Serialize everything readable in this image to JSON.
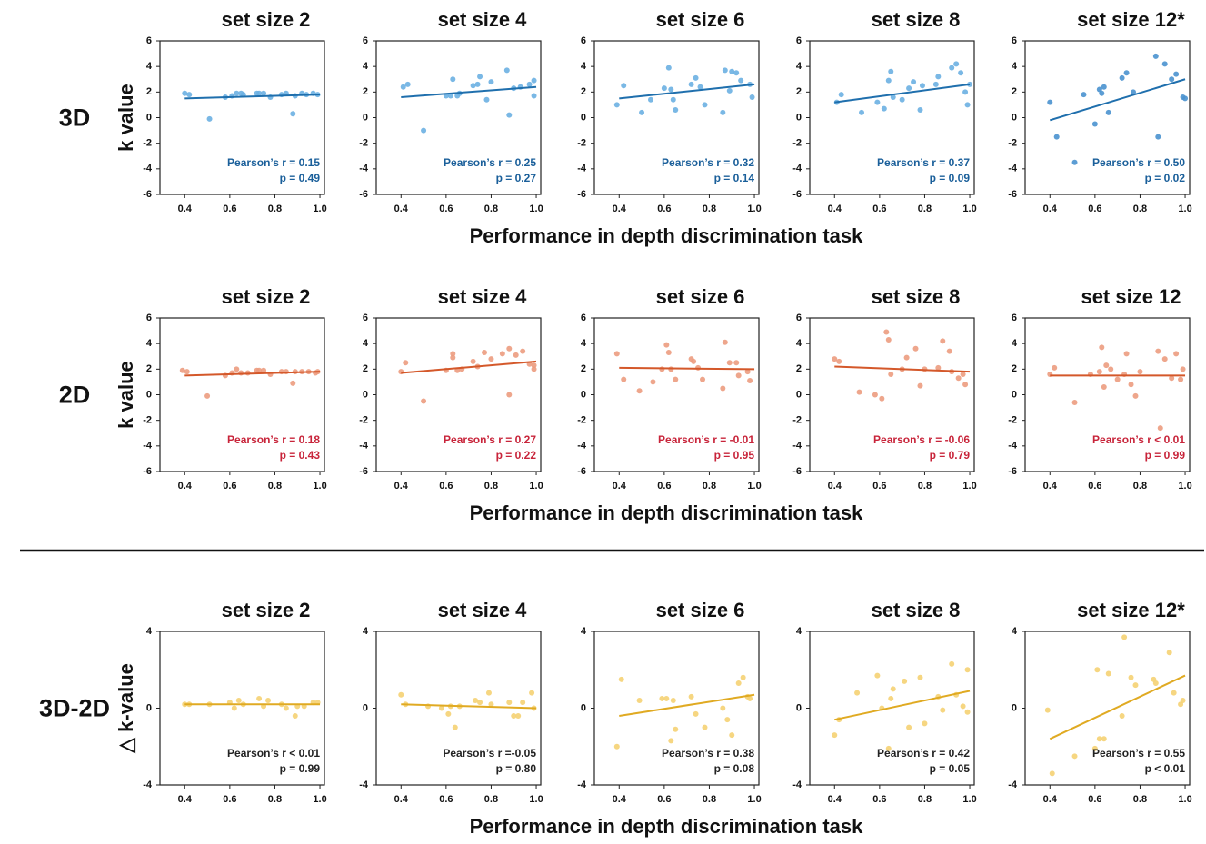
{
  "rows": [
    {
      "label": "3D",
      "ylabel": "k value",
      "xlabel": "Performance in depth discrimination task"
    },
    {
      "label": "2D",
      "ylabel": "k value",
      "xlabel": "Performance in depth discrimination task"
    },
    {
      "label": "3D-2D",
      "ylabel": "△ k-value",
      "xlabel": "Performance in depth discrimination task"
    }
  ],
  "chart_data": [
    {
      "type": "scatter",
      "title": "set size 2",
      "color": "#6cb0e2",
      "line_color": "#1f6fad",
      "text_color": "#1a5f9a",
      "x": [
        0.4,
        0.42,
        0.51,
        0.58,
        0.61,
        0.63,
        0.65,
        0.66,
        0.72,
        0.73,
        0.75,
        0.78,
        0.83,
        0.85,
        0.88,
        0.89,
        0.92,
        0.94,
        0.97,
        0.99
      ],
      "values": [
        1.9,
        1.8,
        -0.1,
        1.6,
        1.7,
        1.9,
        1.9,
        1.8,
        1.9,
        1.9,
        1.9,
        1.6,
        1.8,
        1.9,
        0.3,
        1.7,
        1.9,
        1.8,
        1.9,
        1.8
      ],
      "fit": {
        "x": [
          0.4,
          1.0
        ],
        "y": [
          1.5,
          1.8
        ]
      },
      "stats": [
        "Pearson’s r = 0.15",
        "p = 0.49"
      ],
      "xlim": [
        0.29,
        1.02
      ],
      "ylim": [
        -6,
        6
      ],
      "xticks": [
        0.4,
        0.6,
        0.8,
        {
          "value": 1,
          "label": "1.0"
        }
      ],
      "yticks": [
        -6,
        -4,
        -2,
        0,
        2,
        4,
        6
      ]
    },
    {
      "type": "scatter",
      "title": "set size 4",
      "color": "#6cb0e2",
      "line_color": "#1f6fad",
      "text_color": "#1a5f9a",
      "x": [
        0.41,
        0.43,
        0.5,
        0.6,
        0.62,
        0.63,
        0.65,
        0.66,
        0.72,
        0.74,
        0.75,
        0.78,
        0.8,
        0.87,
        0.88,
        0.9,
        0.93,
        0.97,
        0.99,
        0.99
      ],
      "values": [
        2.4,
        2.6,
        -1.0,
        1.7,
        1.7,
        3.0,
        1.7,
        1.9,
        2.5,
        2.6,
        3.2,
        1.4,
        2.8,
        3.7,
        0.2,
        2.3,
        2.4,
        2.6,
        1.7,
        2.9
      ],
      "fit": {
        "x": [
          0.4,
          1.0
        ],
        "y": [
          1.6,
          2.4
        ]
      },
      "stats": [
        "Pearson’s r = 0.25",
        "p = 0.27"
      ],
      "xlim": [
        0.29,
        1.02
      ],
      "ylim": [
        -6,
        6
      ],
      "xticks": [
        0.4,
        0.6,
        0.8,
        {
          "value": 1,
          "label": "1.0"
        }
      ],
      "yticks": [
        -6,
        -4,
        -2,
        0,
        2,
        4,
        6
      ]
    },
    {
      "type": "scatter",
      "title": "set size 6",
      "color": "#6cb0e2",
      "line_color": "#1f6fad",
      "text_color": "#1a5f9a",
      "x": [
        0.39,
        0.42,
        0.5,
        0.54,
        0.6,
        0.62,
        0.63,
        0.64,
        0.65,
        0.72,
        0.74,
        0.76,
        0.78,
        0.86,
        0.87,
        0.89,
        0.9,
        0.92,
        0.94,
        0.98,
        0.99
      ],
      "values": [
        1.0,
        2.5,
        0.4,
        1.4,
        2.3,
        3.9,
        2.2,
        1.4,
        0.6,
        2.6,
        3.1,
        2.4,
        1.0,
        0.4,
        3.7,
        2.1,
        3.6,
        3.5,
        2.9,
        2.6,
        1.6
      ],
      "fit": {
        "x": [
          0.4,
          1.0
        ],
        "y": [
          1.5,
          2.6
        ]
      },
      "stats": [
        "Pearson’s r = 0.32",
        "p = 0.14"
      ],
      "xlim": [
        0.29,
        1.02
      ],
      "ylim": [
        -6,
        6
      ],
      "xticks": [
        0.4,
        0.6,
        0.8,
        {
          "value": 1,
          "label": "1.0"
        }
      ],
      "yticks": [
        -6,
        -4,
        -2,
        0,
        2,
        4,
        6
      ]
    },
    {
      "type": "scatter",
      "title": "set size 8",
      "color": "#6cb0e2",
      "line_color": "#1f6fad",
      "text_color": "#1a5f9a",
      "x": [
        0.41,
        0.43,
        0.52,
        0.59,
        0.62,
        0.64,
        0.65,
        0.66,
        0.7,
        0.73,
        0.75,
        0.78,
        0.79,
        0.85,
        0.86,
        0.92,
        0.94,
        0.96,
        0.98,
        0.99,
        1.0
      ],
      "values": [
        1.2,
        1.8,
        0.4,
        1.2,
        0.7,
        2.9,
        3.6,
        1.6,
        1.4,
        2.3,
        2.8,
        0.6,
        2.5,
        2.6,
        3.2,
        3.9,
        4.2,
        3.5,
        2.0,
        1.0,
        2.6
      ],
      "fit": {
        "x": [
          0.4,
          1.0
        ],
        "y": [
          1.2,
          2.6
        ]
      },
      "stats": [
        "Pearson’s r = 0.37",
        "p = 0.09"
      ],
      "xlim": [
        0.29,
        1.02
      ],
      "ylim": [
        -6,
        6
      ],
      "xticks": [
        0.4,
        0.6,
        0.8,
        {
          "value": 1,
          "label": "1.0"
        }
      ],
      "yticks": [
        -6,
        -4,
        -2,
        0,
        2,
        4,
        6
      ]
    },
    {
      "type": "scatter",
      "title": "set size 12*",
      "color": "#4a92cf",
      "line_color": "#1f6fad",
      "text_color": "#1a5f9a",
      "x": [
        0.4,
        0.43,
        0.51,
        0.55,
        0.6,
        0.62,
        0.63,
        0.64,
        0.66,
        0.72,
        0.74,
        0.77,
        0.87,
        0.88,
        0.91,
        0.94,
        0.96,
        0.99,
        1.0
      ],
      "values": [
        1.2,
        -1.5,
        -3.5,
        1.8,
        -0.5,
        2.2,
        1.9,
        2.4,
        0.4,
        3.1,
        3.5,
        2.0,
        4.8,
        -1.5,
        4.2,
        3.0,
        3.4,
        1.6,
        1.5
      ],
      "fit": {
        "x": [
          0.4,
          1.0
        ],
        "y": [
          -0.2,
          3.0
        ]
      },
      "stats": [
        "Pearson’s r = 0.50",
        "p = 0.02"
      ],
      "xlim": [
        0.29,
        1.02
      ],
      "ylim": [
        -6,
        6
      ],
      "xticks": [
        0.4,
        0.6,
        0.8,
        {
          "value": 1,
          "label": "1.0"
        }
      ],
      "yticks": [
        -6,
        -4,
        -2,
        0,
        2,
        4,
        6
      ]
    },
    {
      "type": "scatter",
      "title": "set size 2",
      "color": "#ec9c80",
      "line_color": "#d4582a",
      "text_color": "#c8243a",
      "x": [
        0.39,
        0.41,
        0.5,
        0.58,
        0.61,
        0.63,
        0.65,
        0.68,
        0.72,
        0.73,
        0.75,
        0.78,
        0.83,
        0.85,
        0.88,
        0.89,
        0.92,
        0.95,
        0.98,
        0.99
      ],
      "values": [
        1.9,
        1.8,
        -0.1,
        1.5,
        1.7,
        2.0,
        1.7,
        1.7,
        1.9,
        1.9,
        1.9,
        1.6,
        1.8,
        1.8,
        0.9,
        1.8,
        1.8,
        1.8,
        1.7,
        1.8
      ],
      "fit": {
        "x": [
          0.4,
          1.0
        ],
        "y": [
          1.5,
          1.8
        ]
      },
      "stats": [
        "Pearson’s r = 0.18",
        "p = 0.43"
      ],
      "xlim": [
        0.29,
        1.02
      ],
      "ylim": [
        -6,
        6
      ],
      "xticks": [
        0.4,
        0.6,
        0.8,
        {
          "value": 1,
          "label": "1.0"
        }
      ],
      "yticks": [
        -6,
        -4,
        -2,
        0,
        2,
        4,
        6
      ]
    },
    {
      "type": "scatter",
      "title": "set size 4",
      "color": "#ec9c80",
      "line_color": "#d4582a",
      "text_color": "#c8243a",
      "x": [
        0.4,
        0.42,
        0.5,
        0.6,
        0.63,
        0.63,
        0.65,
        0.67,
        0.72,
        0.74,
        0.77,
        0.8,
        0.85,
        0.88,
        0.88,
        0.91,
        0.94,
        0.97,
        0.99,
        0.99
      ],
      "values": [
        1.8,
        2.5,
        -0.5,
        1.9,
        3.2,
        2.9,
        1.9,
        2.0,
        2.6,
        2.2,
        3.3,
        2.8,
        3.2,
        3.6,
        0.0,
        3.1,
        3.4,
        2.4,
        2.0,
        2.3
      ],
      "fit": {
        "x": [
          0.4,
          1.0
        ],
        "y": [
          1.7,
          2.6
        ]
      },
      "stats": [
        "Pearson’s r = 0.27",
        "p = 0.22"
      ],
      "xlim": [
        0.29,
        1.02
      ],
      "ylim": [
        -6,
        6
      ],
      "xticks": [
        0.4,
        0.6,
        0.8,
        {
          "value": 1,
          "label": "1.0"
        }
      ],
      "yticks": [
        -6,
        -4,
        -2,
        0,
        2,
        4,
        6
      ]
    },
    {
      "type": "scatter",
      "title": "set size 6",
      "color": "#ec9c80",
      "line_color": "#d4582a",
      "text_color": "#c8243a",
      "x": [
        0.39,
        0.42,
        0.49,
        0.55,
        0.59,
        0.61,
        0.62,
        0.63,
        0.65,
        0.72,
        0.73,
        0.75,
        0.77,
        0.86,
        0.87,
        0.89,
        0.92,
        0.93,
        0.97,
        0.98
      ],
      "values": [
        3.2,
        1.2,
        0.3,
        1.0,
        2.0,
        3.9,
        3.3,
        2.0,
        1.2,
        2.8,
        2.6,
        2.1,
        1.2,
        0.5,
        4.1,
        2.5,
        2.5,
        1.5,
        1.8,
        1.1
      ],
      "fit": {
        "x": [
          0.4,
          1.0
        ],
        "y": [
          2.1,
          2.0
        ]
      },
      "stats": [
        "Pearson’s r = -0.01",
        "p = 0.95"
      ],
      "xlim": [
        0.29,
        1.02
      ],
      "ylim": [
        -6,
        6
      ],
      "xticks": [
        0.4,
        0.6,
        0.8,
        {
          "value": 1,
          "label": "1.0"
        }
      ],
      "yticks": [
        -6,
        -4,
        -2,
        0,
        2,
        4,
        6
      ]
    },
    {
      "type": "scatter",
      "title": "set size 8",
      "color": "#ec9c80",
      "line_color": "#d4582a",
      "text_color": "#c8243a",
      "x": [
        0.4,
        0.42,
        0.51,
        0.58,
        0.61,
        0.63,
        0.64,
        0.65,
        0.7,
        0.72,
        0.76,
        0.78,
        0.8,
        0.86,
        0.88,
        0.91,
        0.92,
        0.95,
        0.97,
        0.98
      ],
      "values": [
        2.8,
        2.6,
        0.2,
        0.0,
        -0.3,
        4.9,
        4.3,
        1.6,
        2.0,
        2.9,
        3.6,
        0.7,
        2.0,
        2.1,
        4.2,
        3.4,
        1.8,
        1.3,
        1.6,
        0.8
      ],
      "fit": {
        "x": [
          0.4,
          1.0
        ],
        "y": [
          2.2,
          1.8
        ]
      },
      "stats": [
        "Pearson’s r = -0.06",
        "p = 0.79"
      ],
      "xlim": [
        0.29,
        1.02
      ],
      "ylim": [
        -6,
        6
      ],
      "xticks": [
        0.4,
        0.6,
        0.8,
        {
          "value": 1,
          "label": "1.0"
        }
      ],
      "yticks": [
        -6,
        -4,
        -2,
        0,
        2,
        4,
        6
      ]
    },
    {
      "type": "scatter",
      "title": "set size 12",
      "color": "#ec9c80",
      "line_color": "#d4582a",
      "text_color": "#c8243a",
      "x": [
        0.4,
        0.42,
        0.51,
        0.58,
        0.62,
        0.63,
        0.64,
        0.65,
        0.67,
        0.7,
        0.73,
        0.74,
        0.76,
        0.78,
        0.8,
        0.88,
        0.89,
        0.91,
        0.94,
        0.96,
        0.98,
        0.99
      ],
      "values": [
        1.6,
        2.1,
        -0.6,
        1.6,
        1.8,
        3.7,
        0.6,
        2.3,
        2.0,
        1.2,
        1.6,
        3.2,
        0.8,
        -0.1,
        1.8,
        3.4,
        -2.6,
        2.8,
        1.3,
        3.2,
        1.2,
        2.0
      ],
      "fit": {
        "x": [
          0.4,
          1.0
        ],
        "y": [
          1.5,
          1.5
        ]
      },
      "stats": [
        "Pearson’s r < 0.01",
        "p = 0.99"
      ],
      "xlim": [
        0.29,
        1.02
      ],
      "ylim": [
        -6,
        6
      ],
      "xticks": [
        0.4,
        0.6,
        0.8,
        {
          "value": 1,
          "label": "1.0"
        }
      ],
      "yticks": [
        -6,
        -4,
        -2,
        0,
        2,
        4,
        6
      ]
    },
    {
      "type": "scatter",
      "title": "set size 2",
      "color": "#f5d173",
      "line_color": "#e0aa22",
      "text_color": "#222222",
      "x": [
        0.4,
        0.42,
        0.51,
        0.6,
        0.62,
        0.64,
        0.66,
        0.73,
        0.75,
        0.77,
        0.83,
        0.85,
        0.89,
        0.9,
        0.93,
        0.97,
        0.99
      ],
      "values": [
        0.2,
        0.2,
        0.2,
        0.3,
        0.0,
        0.4,
        0.2,
        0.5,
        0.1,
        0.4,
        0.2,
        0.0,
        -0.4,
        0.1,
        0.1,
        0.3,
        0.3
      ],
      "fit": {
        "x": [
          0.4,
          1.0
        ],
        "y": [
          0.2,
          0.2
        ]
      },
      "stats": [
        "Pearson’s r < 0.01",
        "p = 0.99"
      ],
      "xlim": [
        0.29,
        1.02
      ],
      "ylim": [
        -4,
        4
      ],
      "xticks": [
        0.4,
        0.6,
        0.8,
        {
          "value": 1,
          "label": "1.0"
        }
      ],
      "yticks": [
        -4,
        0,
        4
      ]
    },
    {
      "type": "scatter",
      "title": "set size 4",
      "color": "#f5d173",
      "line_color": "#e0aa22",
      "text_color": "#222222",
      "x": [
        0.4,
        0.42,
        0.52,
        0.58,
        0.61,
        0.62,
        0.64,
        0.66,
        0.73,
        0.75,
        0.79,
        0.8,
        0.88,
        0.9,
        0.92,
        0.94,
        0.98,
        0.99
      ],
      "values": [
        0.7,
        0.2,
        0.1,
        0.0,
        -0.3,
        0.1,
        -1.0,
        0.1,
        0.4,
        0.3,
        0.8,
        0.2,
        0.3,
        -0.4,
        -0.4,
        0.3,
        0.8,
        0.0
      ],
      "fit": {
        "x": [
          0.4,
          1.0
        ],
        "y": [
          0.2,
          0.0
        ]
      },
      "stats": [
        "Pearson’s r =-0.05",
        "p = 0.80"
      ],
      "xlim": [
        0.29,
        1.02
      ],
      "ylim": [
        -4,
        4
      ],
      "xticks": [
        0.4,
        0.6,
        0.8,
        {
          "value": 1,
          "label": "1.0"
        }
      ],
      "yticks": [
        -4,
        0,
        4
      ]
    },
    {
      "type": "scatter",
      "title": "set size 6",
      "color": "#f5d173",
      "line_color": "#e0aa22",
      "text_color": "#222222",
      "x": [
        0.39,
        0.41,
        0.49,
        0.59,
        0.61,
        0.63,
        0.64,
        0.65,
        0.72,
        0.74,
        0.78,
        0.86,
        0.88,
        0.9,
        0.93,
        0.95,
        0.97,
        0.98
      ],
      "values": [
        -2.0,
        1.5,
        0.4,
        0.5,
        0.5,
        -1.7,
        0.4,
        -1.1,
        0.6,
        -0.3,
        -1.0,
        0.0,
        -0.6,
        -1.4,
        1.3,
        1.6,
        0.6,
        0.5
      ],
      "fit": {
        "x": [
          0.4,
          1.0
        ],
        "y": [
          -0.4,
          0.7
        ]
      },
      "stats": [
        "Pearson’s r = 0.38",
        "p = 0.08"
      ],
      "xlim": [
        0.29,
        1.02
      ],
      "ylim": [
        -4,
        4
      ],
      "xticks": [
        0.4,
        0.6,
        0.8,
        {
          "value": 1,
          "label": "1.0"
        }
      ],
      "yticks": [
        -4,
        0,
        4
      ]
    },
    {
      "type": "scatter",
      "title": "set size 8",
      "color": "#f5d173",
      "line_color": "#e0aa22",
      "text_color": "#222222",
      "x": [
        0.4,
        0.42,
        0.5,
        0.59,
        0.61,
        0.64,
        0.65,
        0.66,
        0.71,
        0.73,
        0.78,
        0.8,
        0.86,
        0.88,
        0.92,
        0.94,
        0.97,
        0.99,
        0.99
      ],
      "values": [
        -1.4,
        -0.6,
        0.8,
        1.7,
        0.0,
        -2.1,
        0.5,
        1.0,
        1.4,
        -1.0,
        1.6,
        -0.8,
        0.6,
        -0.1,
        2.3,
        0.7,
        0.1,
        2.0,
        -0.2
      ],
      "fit": {
        "x": [
          0.4,
          1.0
        ],
        "y": [
          -0.6,
          0.9
        ]
      },
      "stats": [
        "Pearson’s r = 0.42",
        "p = 0.05"
      ],
      "xlim": [
        0.29,
        1.02
      ],
      "ylim": [
        -4,
        4
      ],
      "xticks": [
        0.4,
        0.6,
        0.8,
        {
          "value": 1,
          "label": "1.0"
        }
      ],
      "yticks": [
        -4,
        0,
        4
      ]
    },
    {
      "type": "scatter",
      "title": "set size 12*",
      "color": "#f5d173",
      "line_color": "#e0aa22",
      "text_color": "#222222",
      "x": [
        0.39,
        0.41,
        0.51,
        0.6,
        0.61,
        0.62,
        0.64,
        0.66,
        0.72,
        0.73,
        0.76,
        0.78,
        0.86,
        0.87,
        0.93,
        0.95,
        0.98,
        0.99
      ],
      "values": [
        -0.1,
        -3.4,
        -2.5,
        -2.1,
        2.0,
        -1.6,
        -1.6,
        1.8,
        -0.4,
        3.7,
        1.6,
        1.2,
        1.5,
        1.3,
        2.9,
        0.8,
        0.2,
        0.4
      ],
      "fit": {
        "x": [
          0.4,
          1.0
        ],
        "y": [
          -1.6,
          1.7
        ]
      },
      "stats": [
        "Pearson’s r = 0.55",
        "p < 0.01"
      ],
      "xlim": [
        0.29,
        1.02
      ],
      "ylim": [
        -4,
        4
      ],
      "xticks": [
        0.4,
        0.6,
        0.8,
        {
          "value": 1,
          "label": "1.0"
        }
      ],
      "yticks": [
        -4,
        0,
        4
      ]
    }
  ]
}
